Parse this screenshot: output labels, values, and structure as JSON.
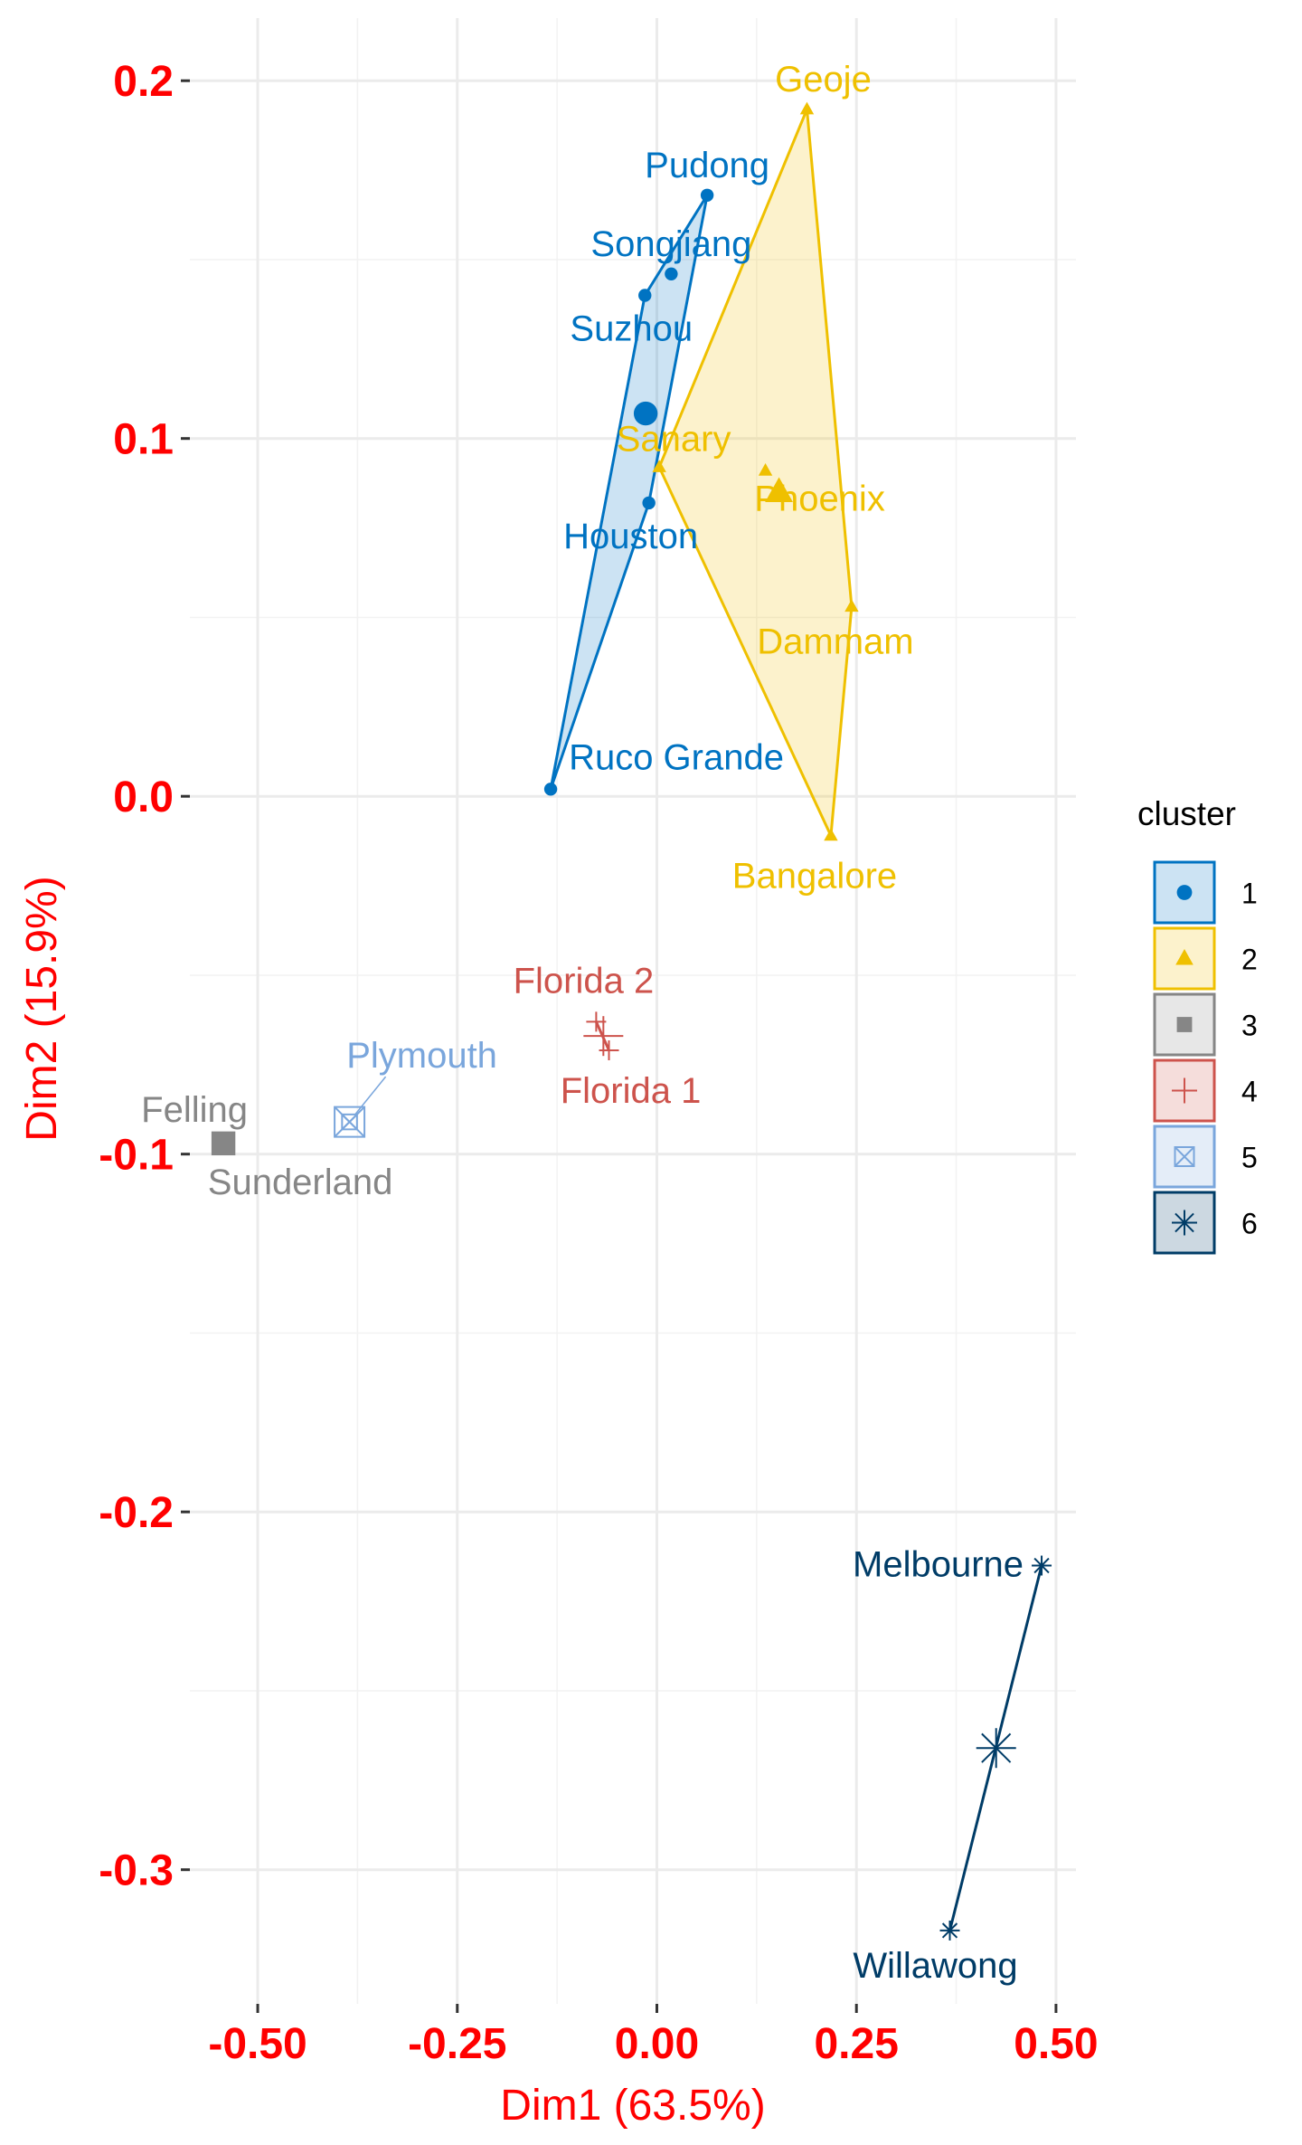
{
  "chart_data": {
    "type": "scatter",
    "xlabel": "Dim1 (63.5%)",
    "ylabel": "Dim2 (15.9%)",
    "xlim": [
      -0.585,
      0.525
    ],
    "ylim": [
      -0.3375,
      0.2175
    ],
    "x_ticks": [
      -0.5,
      -0.25,
      0.0,
      0.25,
      0.5
    ],
    "x_tick_labels": [
      "-0.50",
      "-0.25",
      "0.00",
      "0.25",
      "0.50"
    ],
    "y_ticks": [
      -0.3,
      -0.2,
      -0.1,
      0.0,
      0.1,
      0.2
    ],
    "y_tick_labels": [
      "-0.3",
      "-0.2",
      "-0.1",
      "0.0",
      "0.1",
      "0.2"
    ],
    "grid": true,
    "legend": {
      "title": "cluster",
      "placement": "right",
      "entries": [
        "1",
        "2",
        "3",
        "4",
        "5",
        "6"
      ]
    },
    "clusters": [
      {
        "name": "1",
        "color": "#0073c2",
        "shape": "circle",
        "centroid": [
          -0.014,
          0.107
        ],
        "hull": true,
        "points": [
          {
            "label": "Pudong",
            "x": 0.063,
            "y": 0.168
          },
          {
            "label": "Songjiang",
            "x": 0.018,
            "y": 0.146
          },
          {
            "label": "Suzhou",
            "x": -0.015,
            "y": 0.14
          },
          {
            "label": "Houston",
            "x": -0.01,
            "y": 0.082
          },
          {
            "label": "Ruco Grande",
            "x": -0.133,
            "y": 0.002
          }
        ]
      },
      {
        "name": "2",
        "color": "#efc000",
        "shape": "triangle",
        "centroid": [
          0.153,
          0.085
        ],
        "hull": true,
        "points": [
          {
            "label": "Geoje",
            "x": 0.188,
            "y": 0.192
          },
          {
            "label": "Sanary",
            "x": 0.003,
            "y": 0.092
          },
          {
            "label": "Phoenix",
            "x": 0.136,
            "y": 0.091
          },
          {
            "label": "Dammam",
            "x": 0.244,
            "y": 0.053
          },
          {
            "label": "Bangalore",
            "x": 0.218,
            "y": -0.011
          }
        ]
      },
      {
        "name": "3",
        "color": "#868686",
        "shape": "square",
        "centroid": [
          -0.543,
          -0.097
        ],
        "hull": false,
        "points": [
          {
            "label": "Felling",
            "x": -0.543,
            "y": -0.097
          },
          {
            "label": "Sunderland",
            "x": -0.543,
            "y": -0.097
          }
        ]
      },
      {
        "name": "4",
        "color": "#cd534c",
        "shape": "plus",
        "centroid": [
          -0.067,
          -0.067
        ],
        "hull": true,
        "points": [
          {
            "label": "Florida 2",
            "x": -0.076,
            "y": -0.063
          },
          {
            "label": "Florida 1",
            "x": -0.06,
            "y": -0.071
          }
        ]
      },
      {
        "name": "5",
        "color": "#7aa6dc",
        "shape": "boxx",
        "centroid": [
          -0.385,
          -0.091
        ],
        "hull": false,
        "points": [
          {
            "label": "Plymouth",
            "x": -0.385,
            "y": -0.091
          }
        ]
      },
      {
        "name": "6",
        "color": "#003c67",
        "shape": "asterisk",
        "centroid": [
          0.425,
          -0.266
        ],
        "hull": true,
        "points": [
          {
            "label": "Melbourne",
            "x": 0.482,
            "y": -0.215
          },
          {
            "label": "Willawong",
            "x": 0.367,
            "y": -0.317
          }
        ]
      }
    ]
  }
}
